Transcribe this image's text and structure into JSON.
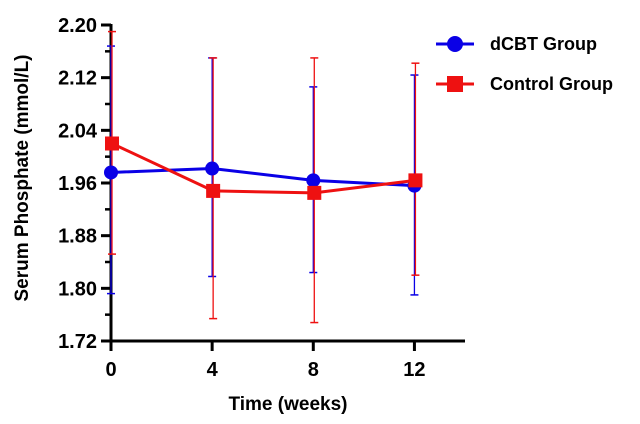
{
  "chart_data": {
    "type": "line",
    "title": "",
    "xlabel": "Time (weeks)",
    "ylabel": "Serum Phosphate (mmol/L)",
    "x": [
      0,
      4,
      8,
      12
    ],
    "xlim": [
      0,
      14
    ],
    "ylim": [
      1.72,
      2.2
    ],
    "x_ticks": [
      "0",
      "4",
      "8",
      "12"
    ],
    "y_ticks": [
      "1.72",
      "1.80",
      "1.88",
      "1.96",
      "2.04",
      "2.12",
      "2.20"
    ],
    "grid": false,
    "legend": "top-right",
    "series": [
      {
        "name": "dCBT Group",
        "marker": "circle",
        "color": "#0a00e6",
        "values": [
          1.976,
          1.982,
          1.964,
          1.956
        ],
        "err_low": [
          1.792,
          1.818,
          1.824,
          1.79
        ],
        "err_high": [
          2.168,
          2.15,
          2.106,
          2.124
        ]
      },
      {
        "name": "Control Group",
        "marker": "square",
        "color": "#ee1111",
        "values": [
          2.02,
          1.948,
          1.945,
          1.964
        ],
        "err_low": [
          1.852,
          1.754,
          1.748,
          1.82
        ],
        "err_high": [
          2.19,
          2.15,
          2.15,
          2.142
        ]
      }
    ]
  }
}
